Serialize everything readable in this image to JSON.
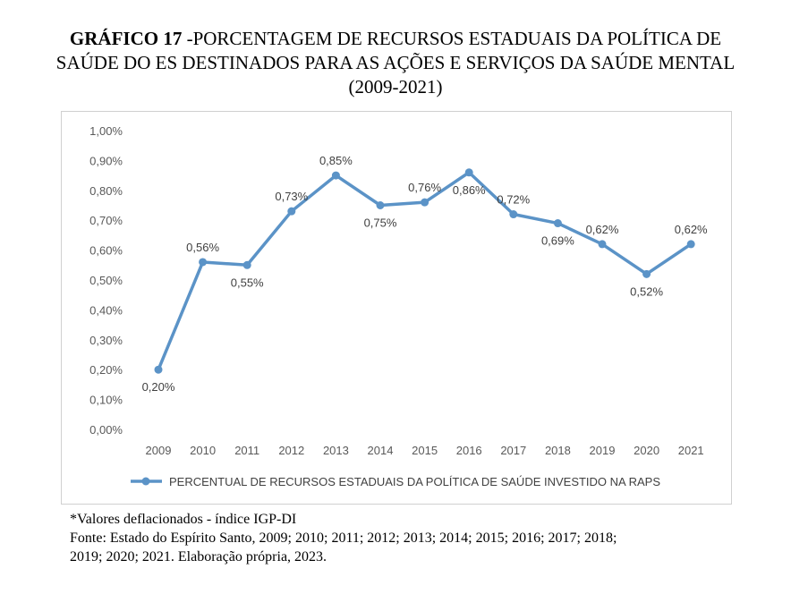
{
  "title": {
    "number": "GRÁFICO 17",
    "line1": " -PORCENTAGEM DE RECURSOS ESTADUAIS DA POLÍTICA DE",
    "line2": "SAÚDE DO ES DESTINADOS PARA AS AÇÕES E SERVIÇOS DA SAÚDE MENTAL",
    "line3": "(2009-2021)"
  },
  "chart_data": {
    "type": "line",
    "categories": [
      "2009",
      "2010",
      "2011",
      "2012",
      "2013",
      "2014",
      "2015",
      "2016",
      "2017",
      "2018",
      "2019",
      "2020",
      "2021"
    ],
    "series": [
      {
        "name": "PERCENTUAL DE RECURSOS ESTADUAIS DA POLÍTICA DE SAÚDE INVESTIDO NA RAPS",
        "values": [
          0.2,
          0.56,
          0.55,
          0.73,
          0.85,
          0.75,
          0.76,
          0.86,
          0.72,
          0.69,
          0.62,
          0.52,
          0.62
        ],
        "labels": [
          "0,20%",
          "0,56%",
          "0,55%",
          "0,73%",
          "0,85%",
          "0,75%",
          "0,76%",
          "0,86%",
          "0,72%",
          "0,69%",
          "0,62%",
          "0,52%",
          "0,62%"
        ],
        "label_positions": [
          "below",
          "above",
          "below",
          "above",
          "above",
          "below",
          "above",
          "below",
          "above",
          "below",
          "above",
          "below",
          "above"
        ],
        "color": "#5b93c7"
      }
    ],
    "yticks": [
      "0,00%",
      "0,10%",
      "0,20%",
      "0,30%",
      "0,40%",
      "0,50%",
      "0,60%",
      "0,70%",
      "0,80%",
      "0,90%",
      "1,00%"
    ],
    "ylim": [
      0,
      1.0
    ],
    "grid": false,
    "legend_position": "bottom"
  },
  "notes": {
    "line1": "*Valores deflacionados - índice IGP-DI",
    "line2": "Fonte: Estado do Espírito Santo, 2009; 2010; 2011; 2012; 2013; 2014; 2015; 2016; 2017; 2018;",
    "line3": "2019;  2020; 2021. Elaboração própria, 2023."
  }
}
